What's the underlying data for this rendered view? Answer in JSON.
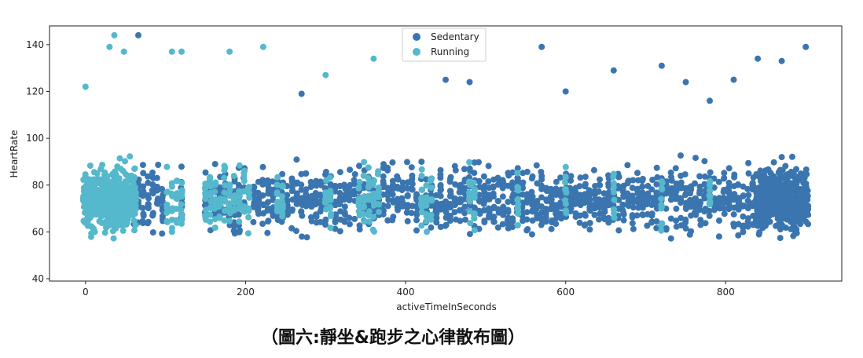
{
  "caption": "（圖六:靜坐&跑步之心律散布圖）",
  "chart_data": {
    "type": "scatter",
    "title": "",
    "xlabel": "activeTimeInSeconds",
    "ylabel": "HeartRate",
    "xlim": [
      -45,
      945
    ],
    "ylim": [
      39,
      148
    ],
    "xticks": [
      0,
      200,
      400,
      600,
      800
    ],
    "yticks": [
      40,
      60,
      80,
      100,
      120,
      140
    ],
    "grid": false,
    "legend_position": "top-center",
    "series": [
      {
        "name": "Sedentary",
        "color": "#3b75af",
        "x_columns": [
          60,
          66,
          72,
          78,
          84,
          90,
          96,
          120,
          150,
          156,
          162,
          168,
          174,
          180,
          186,
          192,
          198,
          210,
          216,
          222,
          228,
          234,
          240,
          246,
          252,
          258,
          264,
          270,
          276,
          282,
          288,
          294,
          300,
          306,
          312,
          318,
          324,
          330,
          336,
          342,
          348,
          354,
          360,
          366,
          372,
          378,
          384,
          390,
          396,
          402,
          408,
          414,
          420,
          426,
          432,
          438,
          444,
          450,
          456,
          462,
          468,
          474,
          480,
          486,
          492,
          498,
          504,
          510,
          516,
          522,
          528,
          534,
          540,
          546,
          552,
          558,
          564,
          570,
          576,
          582,
          588,
          594,
          600,
          606,
          612,
          618,
          624,
          630,
          636,
          642,
          648,
          654,
          660,
          666,
          672,
          678,
          684,
          690,
          696,
          702,
          708,
          714,
          720,
          726,
          732,
          738,
          744,
          750,
          756,
          762,
          768,
          774,
          780,
          786,
          792,
          798,
          804,
          810,
          816,
          822,
          828,
          834,
          840,
          846,
          852,
          858,
          864,
          870,
          876,
          882,
          888,
          894,
          900
        ],
        "x_range": [
          0,
          900
        ],
        "y_range": [
          45,
          144
        ],
        "notable_points": [
          [
            66,
            144
          ],
          [
            270,
            119
          ],
          [
            450,
            125
          ],
          [
            480,
            124
          ],
          [
            570,
            139
          ],
          [
            600,
            120
          ],
          [
            660,
            129
          ],
          [
            720,
            131
          ],
          [
            750,
            124
          ],
          [
            780,
            116
          ],
          [
            810,
            125
          ],
          [
            840,
            134
          ],
          [
            870,
            133
          ],
          [
            900,
            139
          ]
        ]
      },
      {
        "name": "Running",
        "color": "#55b8cc",
        "x_columns": [
          0,
          6,
          12,
          18,
          24,
          30,
          36,
          42,
          48,
          54,
          60,
          102,
          108,
          114,
          120,
          150,
          156,
          162,
          168,
          174,
          180,
          186,
          192,
          198,
          204,
          240,
          246,
          300,
          306,
          342,
          348,
          354,
          360,
          366,
          420,
          426,
          432,
          480,
          486,
          540,
          600,
          660,
          720,
          780
        ],
        "x_range": [
          0,
          780
        ],
        "y_range": [
          45,
          144
        ],
        "notable_points": [
          [
            0,
            122
          ],
          [
            30,
            139
          ],
          [
            36,
            144
          ],
          [
            48,
            137
          ],
          [
            108,
            137
          ],
          [
            120,
            137
          ],
          [
            180,
            137
          ],
          [
            222,
            139
          ],
          [
            300,
            127
          ],
          [
            360,
            134
          ]
        ]
      }
    ]
  }
}
